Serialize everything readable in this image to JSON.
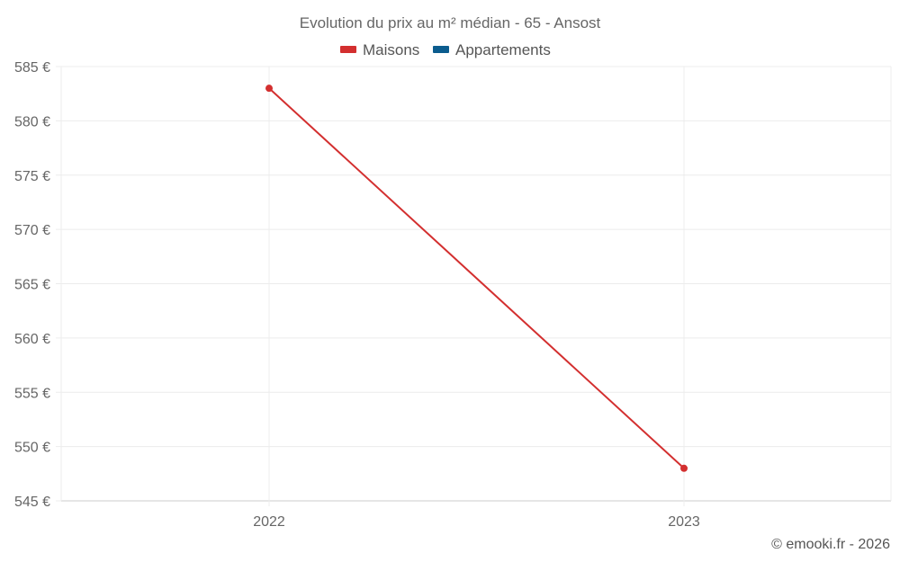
{
  "chart_data": {
    "type": "line",
    "title": "Evolution du prix au m² médian - 65 - Ansost",
    "categories": [
      "2022",
      "2023"
    ],
    "series": [
      {
        "name": "Maisons",
        "color": "#d32f2f",
        "values": [
          583,
          548
        ]
      },
      {
        "name": "Appartements",
        "color": "#0b5c8e",
        "values": [
          null,
          null
        ]
      }
    ],
    "ylim": [
      545,
      585
    ],
    "yticks": [
      545,
      550,
      555,
      560,
      565,
      570,
      575,
      580,
      585
    ],
    "y_tick_suffix": " €",
    "xlabel": "",
    "ylabel": "",
    "grid": true,
    "legend_position": "top"
  },
  "credit": "© emooki.fr - 2026"
}
